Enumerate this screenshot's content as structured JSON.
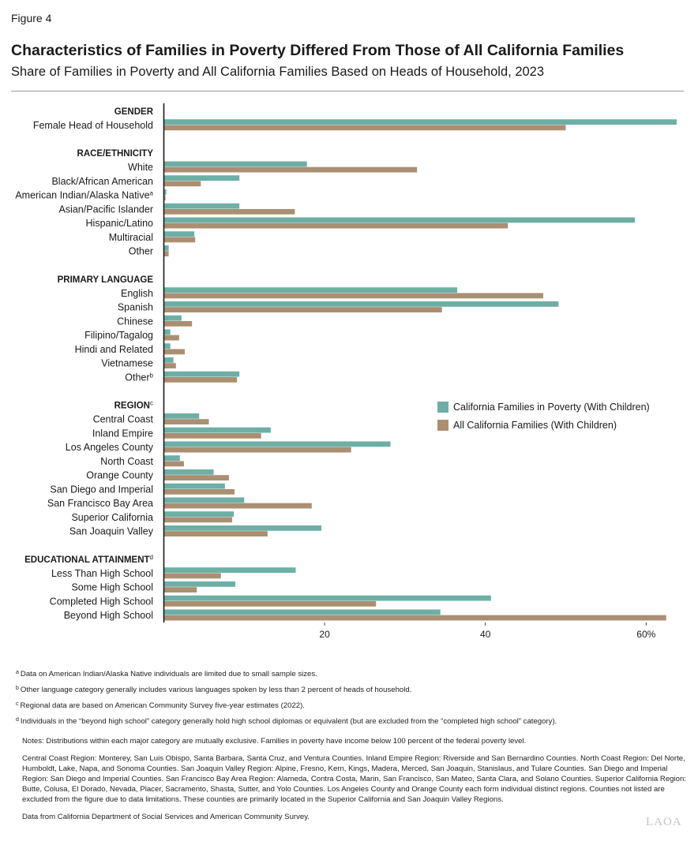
{
  "figure_label": "Figure 4",
  "title": "Characteristics of Families in Poverty Differed From Those of All California Families",
  "subtitle": "Share of Families in Poverty and All California Families Based on Heads of Household, 2023",
  "chart_data": {
    "type": "bar",
    "orientation": "horizontal",
    "unit": "percent",
    "xlim": [
      0,
      64
    ],
    "xticks": [
      20,
      40,
      60
    ],
    "xtick_labels": [
      "20",
      "40",
      "60%"
    ],
    "legend_placement": "right",
    "series": [
      {
        "name": "California Families in Poverty (With Children)",
        "color": "#6dafa5"
      },
      {
        "name": "All California Families (With Children)",
        "color": "#ab8f72"
      }
    ],
    "groups": [
      {
        "header": "GENDER",
        "header_sup": "",
        "items": [
          {
            "label": "Female Head of Household",
            "sup": "",
            "values": [
              63.8,
              50.0
            ]
          }
        ]
      },
      {
        "header": "RACE/ETHNICITY",
        "header_sup": "",
        "items": [
          {
            "label": "White",
            "sup": "",
            "values": [
              17.8,
              31.5
            ]
          },
          {
            "label": "Black/African American",
            "sup": "",
            "values": [
              9.4,
              4.6
            ]
          },
          {
            "label": "American Indian/Alaska Native",
            "sup": "a",
            "values": [
              0.3,
              0.2
            ]
          },
          {
            "label": "Asian/Pacific Islander",
            "sup": "",
            "values": [
              9.4,
              16.3
            ]
          },
          {
            "label": "Hispanic/Latino",
            "sup": "",
            "values": [
              58.6,
              42.8
            ]
          },
          {
            "label": "Multiracial",
            "sup": "",
            "values": [
              3.8,
              3.9
            ]
          },
          {
            "label": "Other",
            "sup": "",
            "values": [
              0.6,
              0.6
            ]
          }
        ]
      },
      {
        "header": "PRIMARY LANGUAGE",
        "header_sup": "",
        "items": [
          {
            "label": "English",
            "sup": "",
            "values": [
              36.5,
              47.2
            ]
          },
          {
            "label": "Spanish",
            "sup": "",
            "values": [
              49.1,
              34.6
            ]
          },
          {
            "label": "Chinese",
            "sup": "",
            "values": [
              2.2,
              3.5
            ]
          },
          {
            "label": "Filipino/Tagalog",
            "sup": "",
            "values": [
              0.8,
              1.9
            ]
          },
          {
            "label": "Hindi and Related",
            "sup": "",
            "values": [
              0.8,
              2.6
            ]
          },
          {
            "label": "Vietnamese",
            "sup": "",
            "values": [
              1.2,
              1.5
            ]
          },
          {
            "label": "Other",
            "sup": "b",
            "values": [
              9.4,
              9.1
            ]
          }
        ]
      },
      {
        "header": "REGION",
        "header_sup": "c",
        "items": [
          {
            "label": "Central Coast",
            "sup": "",
            "values": [
              4.4,
              5.6
            ]
          },
          {
            "label": "Inland Empire",
            "sup": "",
            "values": [
              13.3,
              12.1
            ]
          },
          {
            "label": "Los Angeles County",
            "sup": "",
            "values": [
              28.2,
              23.3
            ]
          },
          {
            "label": "North Coast",
            "sup": "",
            "values": [
              2.0,
              2.5
            ]
          },
          {
            "label": "Orange County",
            "sup": "",
            "values": [
              6.2,
              8.1
            ]
          },
          {
            "label": "San Diego and Imperial",
            "sup": "",
            "values": [
              7.6,
              8.8
            ]
          },
          {
            "label": "San Francisco Bay Area",
            "sup": "",
            "values": [
              10.0,
              18.4
            ]
          },
          {
            "label": "Superior California",
            "sup": "",
            "values": [
              8.7,
              8.5
            ]
          },
          {
            "label": "San Joaquin Valley",
            "sup": "",
            "values": [
              19.6,
              12.9
            ]
          }
        ]
      },
      {
        "header": "EDUCATIONAL ATTAINMENT",
        "header_sup": "d",
        "items": [
          {
            "label": "Less Than High School",
            "sup": "",
            "values": [
              16.4,
              7.1
            ]
          },
          {
            "label": "Some High School",
            "sup": "",
            "values": [
              8.9,
              4.1
            ]
          },
          {
            "label": "Completed High School",
            "sup": "",
            "values": [
              40.7,
              26.4
            ]
          },
          {
            "label": "Beyond High School",
            "sup": "",
            "values": [
              34.4,
              62.5
            ]
          }
        ]
      }
    ]
  },
  "footnotes": [
    {
      "mark": "a",
      "text": "Data on American Indian/Alaska Native individuals are limited due to small sample sizes."
    },
    {
      "mark": "b",
      "text": "Other language category generally includes various languages spoken by less than 2 percent of heads of household."
    },
    {
      "mark": "c",
      "text": "Regional data are based on American Community Survey five-year estimates (2022)."
    },
    {
      "mark": "d",
      "text": "Individuals in the “beyond high school” category generally hold high school diplomas or equivalent (but are excluded from the “completed high school” category)."
    }
  ],
  "notes": {
    "distributions": "Notes: Distributions within each major category are mutually exclusive. Families in poverty have income below 100 percent of the federal poverty level.",
    "regions": "Central Coast Region: Monterey, San Luis Obispo, Santa Barbara, Santa Cruz, and Ventura Counties. Inland Empire Region: Riverside and San Bernardino Counties. North Coast Region: Del Norte, Humboldt, Lake, Napa, and Sonoma Counties. San Joaquin Valley Region: Alpine, Fresno, Kern, Kings, Madera, Merced, San Joaquin, Stanislaus, and Tulare Counties. San Diego and Imperial Region: San Diego and Imperial Counties. San Francisco Bay Area Region: Alameda, Contra Costa, Marin, San Francisco, San Mateo, Santa Clara, and Solano Counties. Superior California Region: Butte, Colusa, El Dorado, Nevada, Placer, Sacramento, Shasta, Sutter, and Yolo Counties. Los Angeles County and Orange County each form individual distinct regions. Counties not listed are excluded from the figure due to data limitations. These counties are primarily located in the Superior California and San Joaquin Valley Regions.",
    "source": "Data from California Department of Social Services and American Community Survey."
  },
  "logo": "LAOA"
}
